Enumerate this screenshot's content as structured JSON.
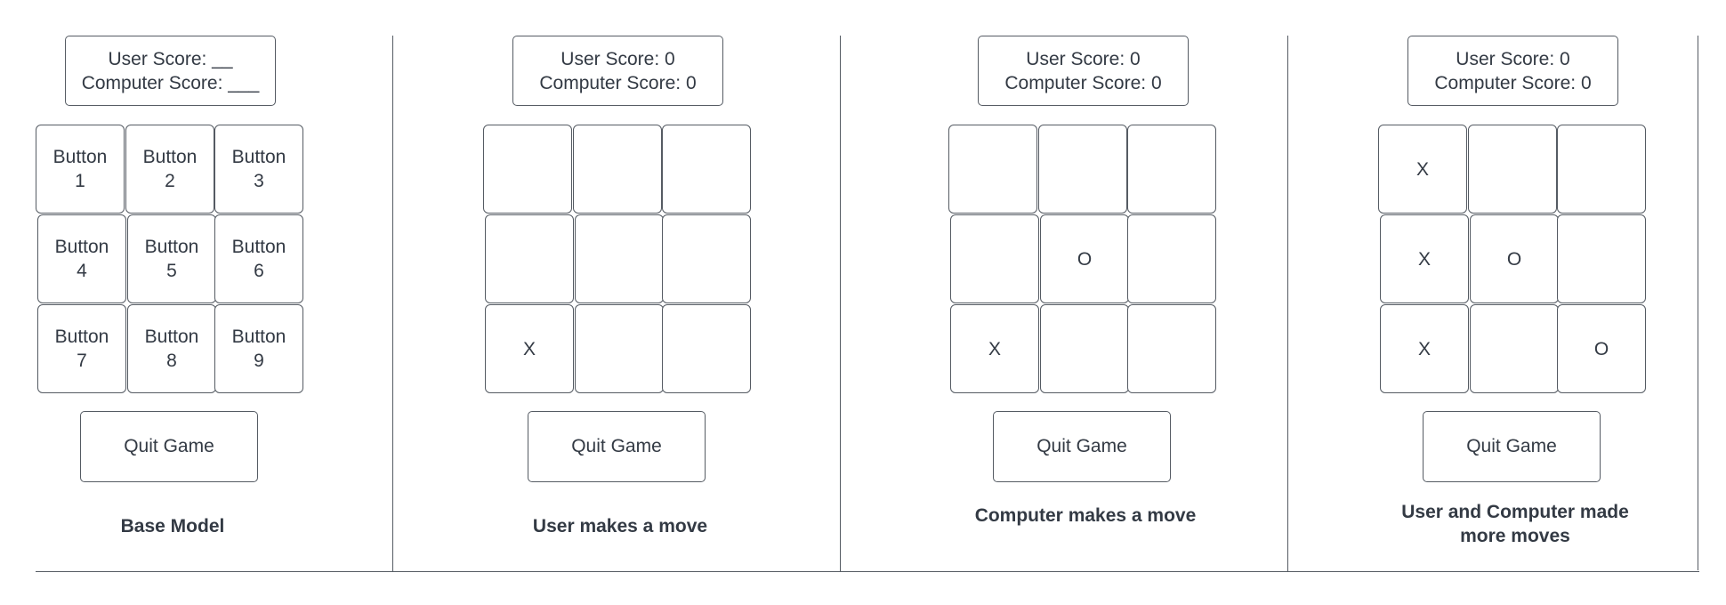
{
  "panels": [
    {
      "user_score_text": "User Score: __",
      "computer_score_text": "Computer Score: ___",
      "cells": [
        "Button\n1",
        "Button\n2",
        "Button\n3",
        "Button\n4",
        "Button\n5",
        "Button\n6",
        "Button\n7",
        "Button\n8",
        "Button\n9"
      ],
      "quit_label": "Quit Game",
      "caption": "Base Model"
    },
    {
      "user_score_text": "User Score: 0",
      "computer_score_text": "Computer Score: 0",
      "cells": [
        "",
        "",
        "",
        "",
        "",
        "",
        "X",
        "",
        ""
      ],
      "quit_label": "Quit Game",
      "caption": "User makes a move"
    },
    {
      "user_score_text": "User Score: 0",
      "computer_score_text": "Computer Score: 0",
      "cells": [
        "",
        "",
        "",
        "",
        "O",
        "",
        "X",
        "",
        ""
      ],
      "quit_label": "Quit Game",
      "caption": "Computer makes a move"
    },
    {
      "user_score_text": "User Score: 0",
      "computer_score_text": "Computer Score: 0",
      "cells": [
        "X",
        "",
        "",
        "X",
        "O",
        "",
        "X",
        "",
        "O"
      ],
      "quit_label": "Quit Game",
      "caption": "User and Computer made more moves"
    }
  ]
}
